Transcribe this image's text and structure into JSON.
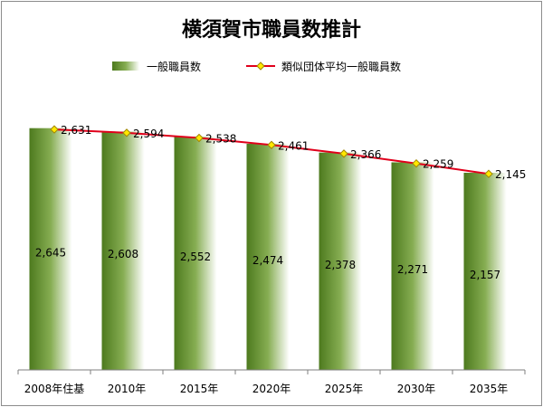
{
  "chart_data": {
    "type": "bar",
    "title": "横須賀市職員数推計",
    "categories": [
      "2008年住基",
      "2010年",
      "2015年",
      "2020年",
      "2025年",
      "2030年",
      "2035年"
    ],
    "series": [
      {
        "name": "一般職員数",
        "type": "bar",
        "values": [
          2645,
          2608,
          2552,
          2474,
          2378,
          2271,
          2157
        ],
        "labels": [
          "2,645",
          "2,608",
          "2,552",
          "2,474",
          "2,378",
          "2,271",
          "2,157"
        ]
      },
      {
        "name": "類似団体平均一般職員数",
        "type": "line",
        "values": [
          2631,
          2594,
          2538,
          2461,
          2366,
          2259,
          2145
        ],
        "labels": [
          "2,631",
          "2,594",
          "2,538",
          "2,461",
          "2,366",
          "2,259",
          "2,145"
        ]
      }
    ],
    "xlabel": "",
    "ylabel": "",
    "ylim": [
      0,
      2820
    ],
    "grid": false,
    "legend_position": "top"
  },
  "colors": {
    "bar_dark": "#4d7a1e",
    "bar_light": "#ffffff",
    "line": "#e0001b",
    "marker": "#ffe800",
    "marker_edge": "#a08600",
    "axis": "#7f7f7f",
    "text": "#000000"
  }
}
